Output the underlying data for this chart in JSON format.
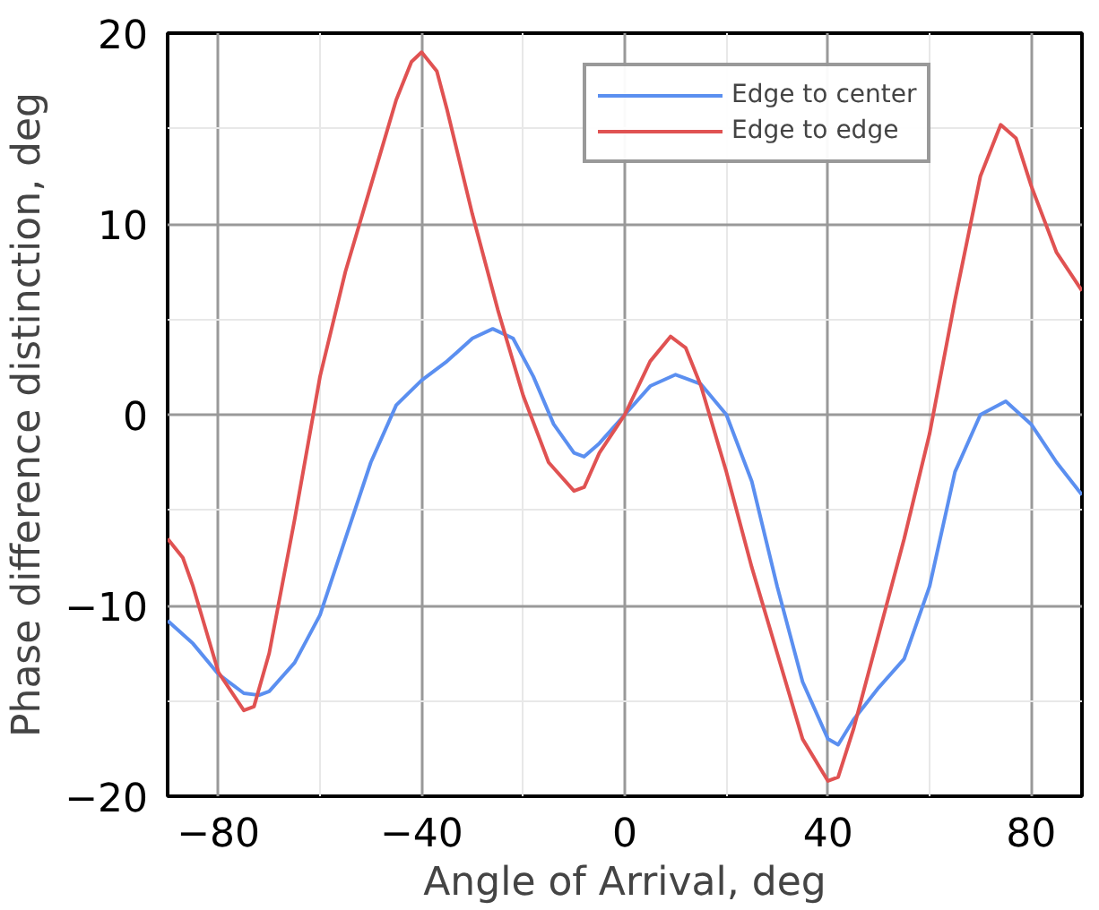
{
  "chart_data": {
    "type": "line",
    "xlabel": "Angle of Arrival, deg",
    "ylabel": "Phase difference distinction, deg",
    "xlim": [
      -90,
      90
    ],
    "ylim": [
      -20,
      20
    ],
    "xticks": [
      -80,
      -40,
      0,
      40,
      80
    ],
    "yticks": [
      -20,
      -10,
      0,
      10,
      20
    ],
    "grid": true,
    "legend": "top right",
    "line_style": "solid",
    "series": [
      {
        "name": "Edge to center",
        "color": "#5b8ff0",
        "x": [
          -90,
          -85,
          -80,
          -75,
          -72,
          -70,
          -65,
          -60,
          -55,
          -50,
          -45,
          -40,
          -35,
          -30,
          -26,
          -22,
          -18,
          -14,
          -10,
          -8,
          -5,
          0,
          5,
          10,
          15,
          20,
          25,
          30,
          35,
          40,
          42,
          45,
          50,
          55,
          60,
          65,
          70,
          75,
          80,
          85,
          90
        ],
        "values": [
          -10.8,
          -12,
          -13.6,
          -14.6,
          -14.7,
          -14.5,
          -13,
          -10.5,
          -6.5,
          -2.5,
          0.5,
          1.8,
          2.8,
          4,
          4.5,
          4,
          2,
          -0.5,
          -2,
          -2.2,
          -1.5,
          0,
          1.5,
          2.1,
          1.6,
          0,
          -3.5,
          -9,
          -14,
          -17,
          -17.3,
          -16,
          -14.3,
          -12.8,
          -9,
          -3,
          0,
          0.7,
          -0.5,
          -2.5,
          -4.2
        ]
      },
      {
        "name": "Edge to edge",
        "color": "#e05252",
        "x": [
          -90,
          -87,
          -85,
          -80,
          -75,
          -73,
          -70,
          -65,
          -60,
          -55,
          -50,
          -45,
          -42,
          -40,
          -37,
          -35,
          -30,
          -25,
          -20,
          -15,
          -10,
          -8,
          -5,
          0,
          5,
          9,
          12,
          15,
          20,
          25,
          30,
          35,
          40,
          42,
          45,
          50,
          55,
          60,
          65,
          70,
          74,
          77,
          80,
          85,
          90
        ],
        "values": [
          -6.5,
          -7.5,
          -9,
          -13.5,
          -15.5,
          -15.3,
          -12.5,
          -5.5,
          2,
          7.5,
          12,
          16.5,
          18.5,
          19,
          18,
          16,
          10.5,
          5.5,
          1,
          -2.5,
          -4,
          -3.8,
          -2,
          0,
          2.8,
          4.1,
          3.5,
          1.5,
          -3,
          -8,
          -12.5,
          -17,
          -19.2,
          -19,
          -16.5,
          -11.5,
          -6.5,
          -1,
          6,
          12.5,
          15.2,
          14.5,
          12,
          8.5,
          6.5
        ]
      }
    ]
  }
}
